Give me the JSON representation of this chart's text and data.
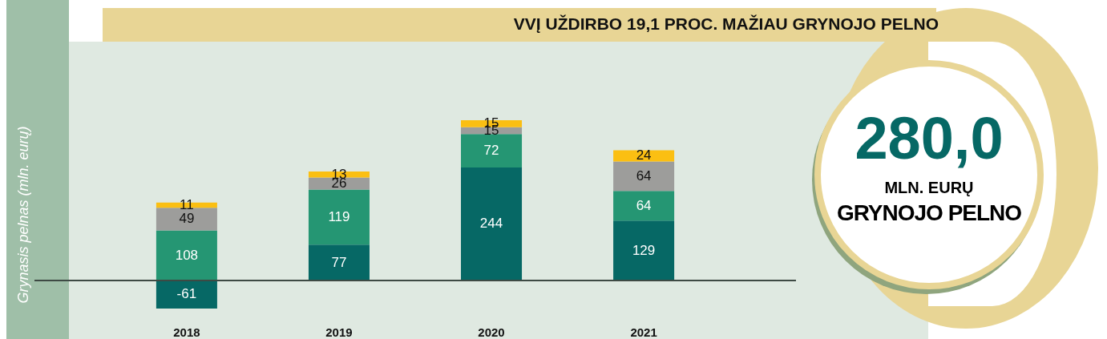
{
  "chart_data": {
    "type": "bar",
    "title": "VVĮ UŽDIRBO 19,1 PROC. MAŽIAU GRYNOJO PELNO",
    "ylabel": "Grynasis pelnas (mln. eurų)",
    "categories": [
      "2018",
      "2019",
      "2020",
      "2021"
    ],
    "stacked": true,
    "data_labels": true,
    "series": [
      {
        "color": "#066865",
        "values": [
          -61,
          77,
          244,
          129
        ]
      },
      {
        "color": "#259673",
        "values": [
          108,
          119,
          72,
          64
        ]
      },
      {
        "color": "#9d9d9b",
        "values": [
          49,
          26,
          15,
          64
        ]
      },
      {
        "color": "#fbbf12",
        "values": [
          11,
          13,
          15,
          24
        ]
      }
    ],
    "annotations": [
      "280,0",
      "MLN. EURŲ",
      "GRYNOJO PELNO"
    ]
  }
}
